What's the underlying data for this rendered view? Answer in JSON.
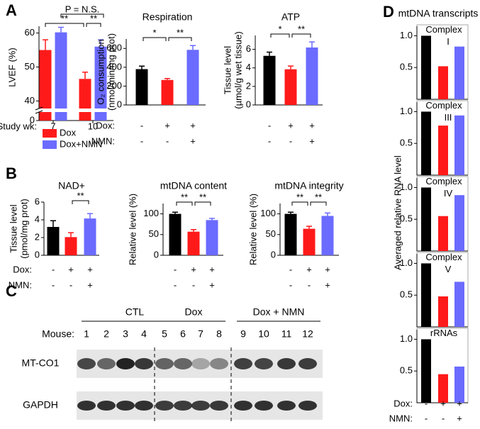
{
  "panel_labels": [
    "A",
    "B",
    "C",
    "D"
  ],
  "chart_data": [
    {
      "type": "grouped_bar",
      "ylabel": "LVEF (%)",
      "xlabel": "Study wk:",
      "categories": [
        "7",
        "10"
      ],
      "series": [
        {
          "name": "Dox",
          "color": "#ff1a1a",
          "values": [
            55,
            46.5
          ],
          "errors": [
            3,
            2
          ]
        },
        {
          "name": "Dox+NMN",
          "color": "#6b6bff",
          "values": [
            60.2,
            56
          ],
          "errors": [
            1.5,
            2
          ]
        }
      ],
      "ylim": [
        0,
        62
      ],
      "ybreak": [
        2,
        38
      ],
      "yticks": [
        0,
        40,
        50,
        60
      ],
      "significance": [
        "**",
        "**",
        "P = N.S."
      ]
    },
    {
      "type": "bar",
      "title": "Respiration",
      "ylabel": [
        "O₂ consumption",
        "(nmol/min/mg prot)"
      ],
      "values": [
        380,
        265,
        585
      ],
      "errors": [
        32,
        15,
        45
      ],
      "colors": [
        "#000000",
        "#ff1a1a",
        "#6b6bff"
      ],
      "ylim": [
        0,
        700
      ],
      "yticks": [
        0,
        200,
        400,
        600
      ],
      "significance": [
        "*",
        "**"
      ],
      "conditions": [
        {
          "name": "Dox:",
          "signs": [
            "-",
            "+",
            "+"
          ]
        },
        {
          "name": "NMN:",
          "signs": [
            "-",
            "-",
            "+"
          ]
        }
      ]
    },
    {
      "type": "bar",
      "title": "ATP",
      "ylabel": [
        "Tissue level",
        "(µmol/g wet tissue)"
      ],
      "values": [
        5.3,
        3.85,
        6.2
      ],
      "errors": [
        0.4,
        0.35,
        0.6
      ],
      "colors": [
        "#000000",
        "#ff1a1a",
        "#6b6bff"
      ],
      "ylim": [
        0,
        7.5
      ],
      "yticks": [
        0,
        2,
        4,
        6
      ],
      "significance": [
        "*",
        "**"
      ],
      "conditions": [
        {
          "signs": [
            "-",
            "+",
            "+"
          ]
        },
        {
          "signs": [
            "-",
            "-",
            "+"
          ]
        }
      ]
    },
    {
      "type": "bar",
      "title": "NAD+",
      "ylabel": [
        "Tissue level",
        "(pmol/mg prot)"
      ],
      "values": [
        3.2,
        2.05,
        4.15
      ],
      "errors": [
        0.7,
        0.5,
        0.55
      ],
      "colors": [
        "#000000",
        "#ff1a1a",
        "#6b6bff"
      ],
      "ylim": [
        0,
        6
      ],
      "yticks": [
        0,
        2,
        4,
        6
      ],
      "significance": [
        null,
        "**"
      ],
      "conditions": [
        {
          "name": "Dox:",
          "signs": [
            "-",
            "+",
            "+"
          ]
        },
        {
          "name": "NMN:",
          "signs": [
            "-",
            "-",
            "+"
          ]
        }
      ]
    },
    {
      "type": "bar",
      "title": "mtDNA content",
      "ylabel": "Relative level (%)",
      "values": [
        100,
        57,
        85
      ],
      "errors": [
        4,
        5,
        4
      ],
      "colors": [
        "#000000",
        "#ff1a1a",
        "#6b6bff"
      ],
      "ylim": [
        0,
        125
      ],
      "yticks": [
        0,
        50,
        100
      ],
      "significance": [
        "**",
        "**"
      ],
      "conditions": [
        {
          "signs": [
            "-",
            "+",
            "+"
          ]
        },
        {
          "signs": [
            "-",
            "-",
            "+"
          ]
        }
      ]
    },
    {
      "type": "bar",
      "title": "mtDNA integrity",
      "ylabel": "Relative level (%)",
      "values": [
        100,
        64,
        95
      ],
      "errors": [
        4,
        6,
        7
      ],
      "colors": [
        "#000000",
        "#ff1a1a",
        "#6b6bff"
      ],
      "ylim": [
        0,
        125
      ],
      "yticks": [
        0,
        50,
        100
      ],
      "significance": [
        "**",
        "**"
      ],
      "conditions": [
        {
          "signs": [
            "-",
            "+",
            "+"
          ]
        },
        {
          "signs": [
            "-",
            "-",
            "+"
          ]
        }
      ]
    },
    {
      "type": "bar",
      "label": "Complex",
      "sublabel": "I",
      "values": [
        1,
        0.52,
        0.83
      ],
      "colors": [
        "#000000",
        "#ff1a1a",
        "#6b6bff"
      ],
      "ylim": [
        0,
        1.15
      ],
      "yticks": [
        0.5,
        {
          "value": 1,
          "label": "1.0"
        }
      ]
    },
    {
      "type": "bar",
      "label": "Complex",
      "sublabel": "III",
      "values": [
        1,
        0.78,
        0.94
      ],
      "colors": [
        "#000000",
        "#ff1a1a",
        "#6b6bff"
      ],
      "ylim": [
        0,
        1.15
      ],
      "yticks": [
        0.5,
        {
          "value": 1,
          "label": "1.0"
        }
      ]
    },
    {
      "type": "bar",
      "label": "Complex",
      "sublabel": "IV",
      "values": [
        1,
        0.55,
        0.88
      ],
      "colors": [
        "#000000",
        "#ff1a1a",
        "#6b6bff"
      ],
      "ylim": [
        0,
        1.15
      ],
      "yticks": [
        0.5,
        {
          "value": 1,
          "label": "1.0"
        }
      ]
    },
    {
      "type": "bar",
      "label": "Complex",
      "sublabel": "V",
      "values": [
        1,
        0.48,
        0.71
      ],
      "colors": [
        "#000000",
        "#ff1a1a",
        "#6b6bff"
      ],
      "ylim": [
        0,
        1.15
      ],
      "yticks": [
        0.5,
        {
          "value": 1,
          "label": "1.0"
        }
      ]
    },
    {
      "type": "bar",
      "label": "rRNAs",
      "values": [
        1,
        0.45,
        0.57
      ],
      "colors": [
        "#000000",
        "#ff1a1a",
        "#6b6bff"
      ],
      "ylim": [
        0,
        1.15
      ],
      "yticks": [
        0.5,
        {
          "value": 1,
          "label": "1.0"
        }
      ],
      "conditions": [
        {
          "name": "Dox:",
          "signs": [
            "-",
            "+",
            "+"
          ]
        },
        {
          "name": "NMN:",
          "signs": [
            "-",
            "-",
            "+"
          ]
        }
      ]
    }
  ],
  "panel_d": {
    "title": "mtDNA transcripts",
    "ylabel": "Averaged relative RNA level"
  },
  "blot": {
    "groups": [
      "CTL",
      "Dox",
      "Dox + NMN"
    ],
    "row_label": "Mouse:",
    "mice": [
      1,
      2,
      3,
      4,
      5,
      6,
      7,
      8,
      9,
      10,
      11,
      12
    ],
    "proteins": [
      "MT-CO1",
      "GAPDH"
    ]
  }
}
